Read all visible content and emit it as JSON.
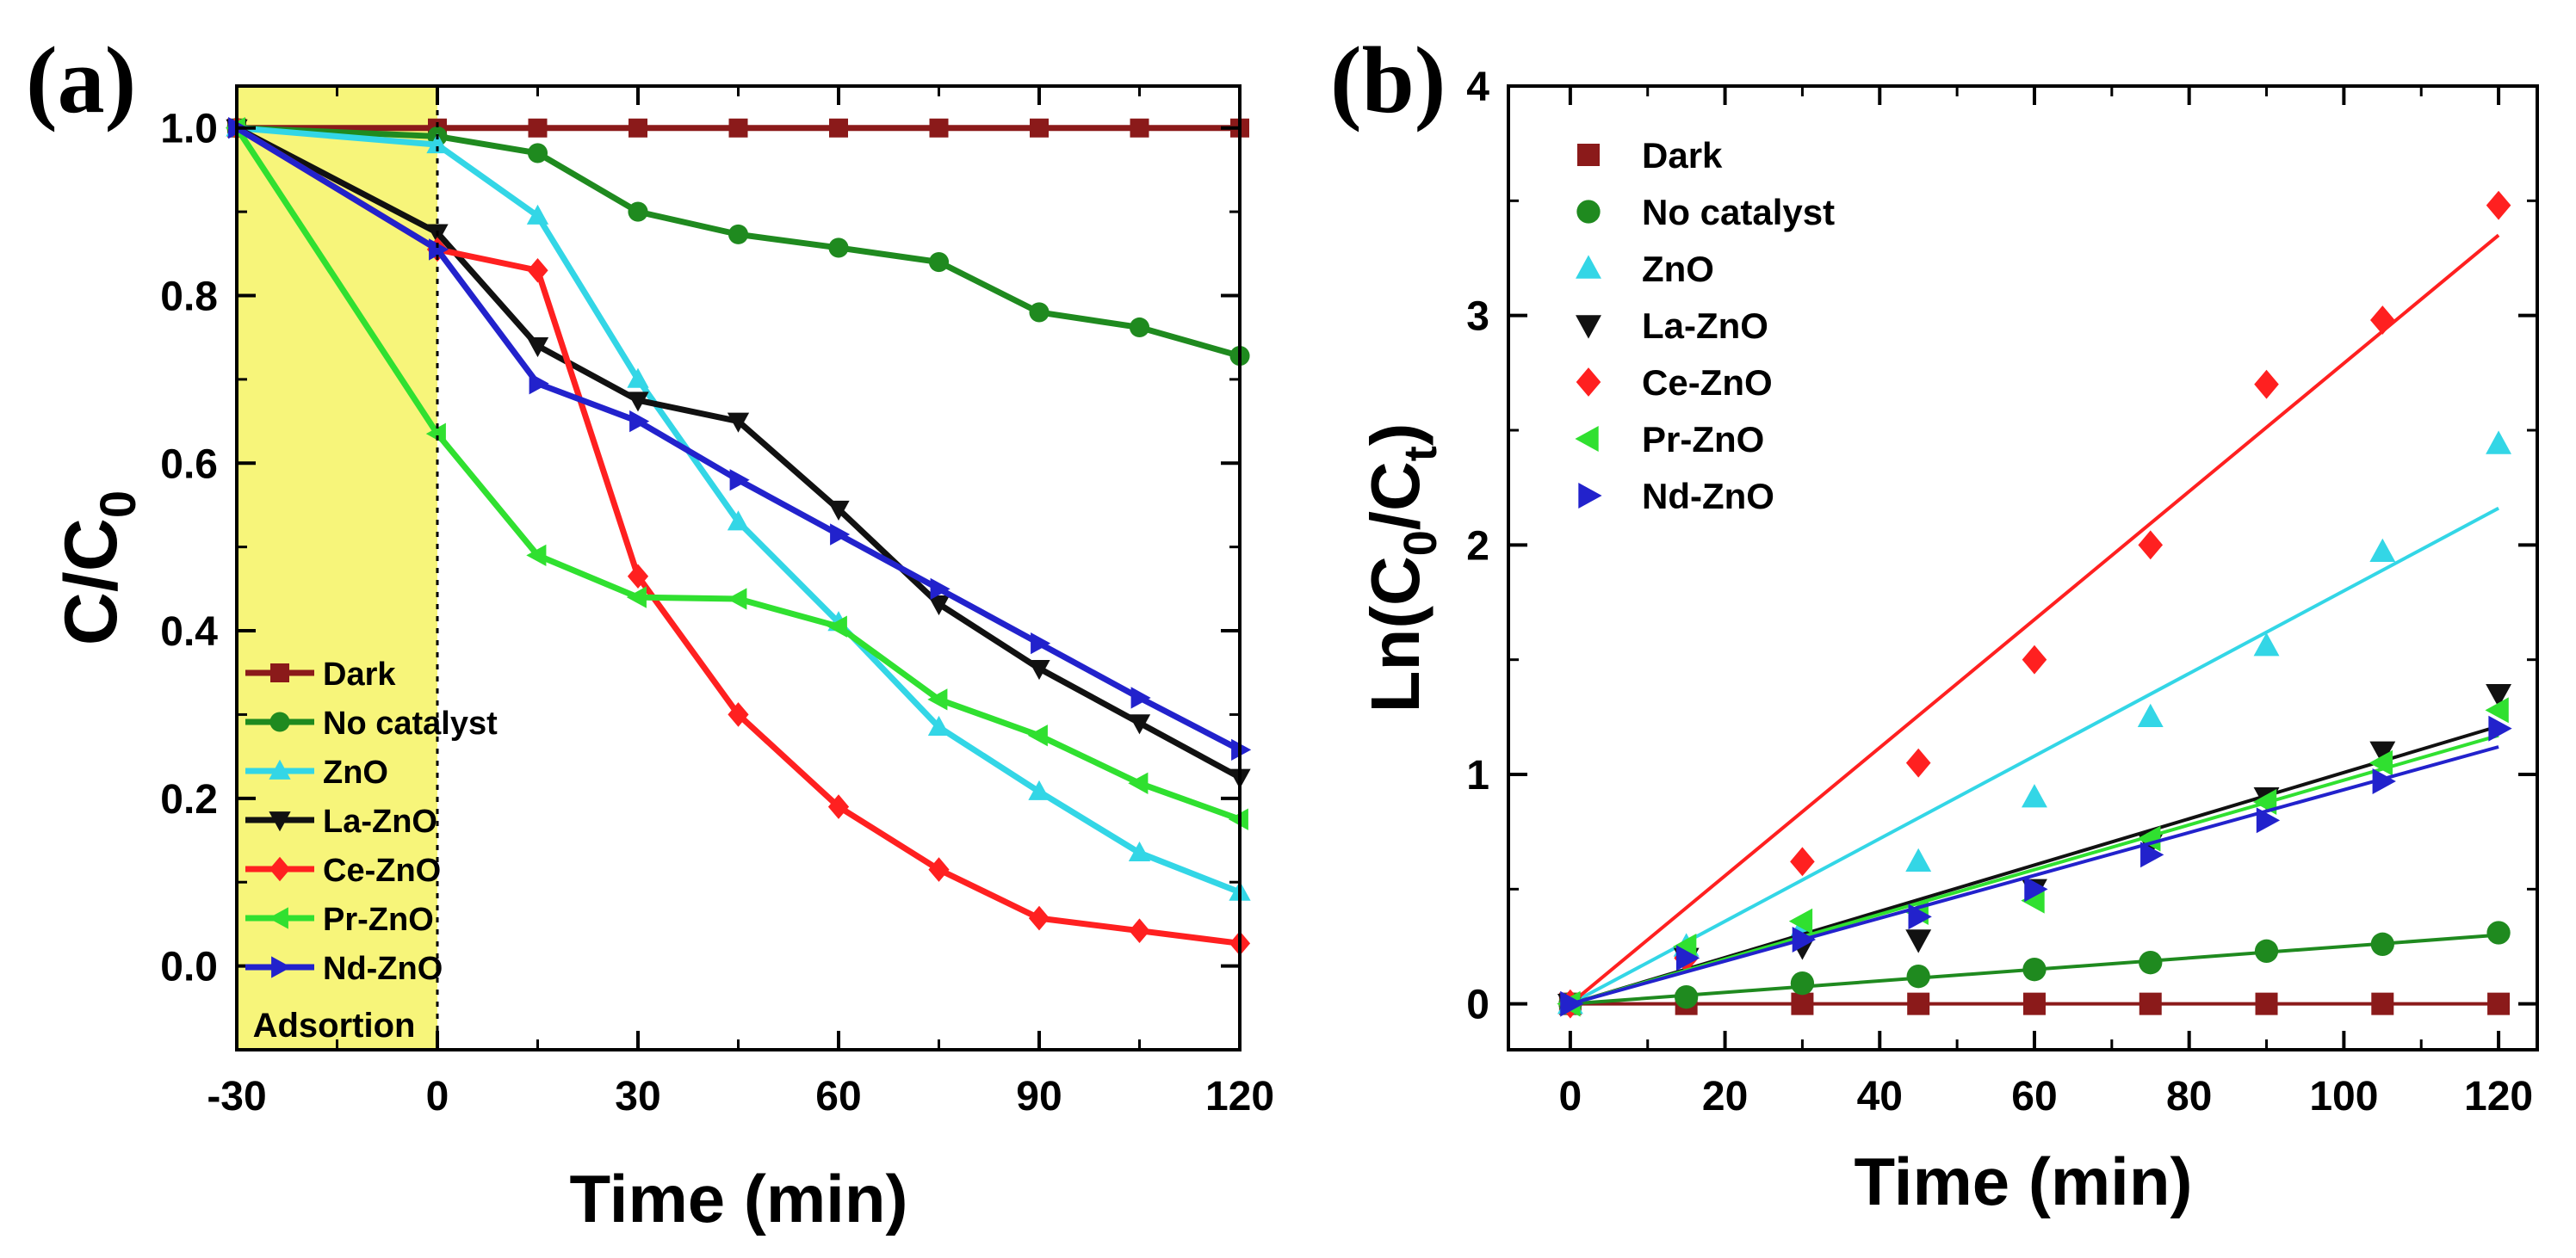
{
  "chart_data": [
    {
      "type": "line",
      "panel_label": "(a)",
      "xlabel": "Time (min)",
      "ylabel_main": "C/C",
      "ylabel_sub": "0",
      "xlim": [
        -30,
        120
      ],
      "ylim": [
        -0.1,
        1.05
      ],
      "xticks": [
        -30,
        0,
        30,
        60,
        90,
        120
      ],
      "xtick_labels": [
        "-30",
        "0",
        "30",
        "60",
        "90",
        "120"
      ],
      "yticks": [
        0.0,
        0.2,
        0.4,
        0.6,
        0.8,
        1.0
      ],
      "ytick_labels": [
        "0.0",
        "0.2",
        "0.4",
        "0.6",
        "0.8",
        "1.0"
      ],
      "shaded_region": {
        "from": -30,
        "to": 0,
        "color": "#f7f57a",
        "label": "Adsortion"
      },
      "legend_position": "lower-left",
      "x": [
        -30,
        0,
        15,
        30,
        45,
        60,
        75,
        90,
        105,
        120
      ],
      "series": [
        {
          "name": "Dark",
          "color": "#8b1a1a",
          "marker": "square",
          "values": [
            1.0,
            1.0,
            1.0,
            1.0,
            1.0,
            1.0,
            1.0,
            1.0,
            1.0,
            1.0
          ]
        },
        {
          "name": "No catalyst",
          "color": "#1f8a1f",
          "marker": "circle",
          "values": [
            1.0,
            0.99,
            0.97,
            0.9,
            0.873,
            0.857,
            0.84,
            0.78,
            0.762,
            0.728
          ]
        },
        {
          "name": "ZnO",
          "color": "#33d6e6",
          "marker": "triangle-up",
          "values": [
            1.0,
            0.98,
            0.895,
            0.7,
            0.53,
            0.41,
            0.285,
            0.208,
            0.135,
            0.088
          ]
        },
        {
          "name": "La-ZnO",
          "color": "#111111",
          "marker": "triangle-down",
          "values": [
            1.0,
            0.875,
            0.74,
            0.675,
            0.65,
            0.545,
            0.432,
            0.355,
            0.29,
            0.225
          ]
        },
        {
          "name": "Ce-ZnO",
          "color": "#ff2020",
          "marker": "diamond",
          "values": [
            1.0,
            0.855,
            0.83,
            0.465,
            0.3,
            0.19,
            0.115,
            0.057,
            0.042,
            0.027
          ]
        },
        {
          "name": "Pr-ZnO",
          "color": "#30e030",
          "marker": "triangle-left",
          "values": [
            1.0,
            0.635,
            0.49,
            0.44,
            0.438,
            0.405,
            0.318,
            0.275,
            0.218,
            0.175
          ]
        },
        {
          "name": "Nd-ZnO",
          "color": "#2222cc",
          "marker": "triangle-right",
          "values": [
            1.0,
            0.855,
            0.695,
            0.65,
            0.58,
            0.515,
            0.45,
            0.385,
            0.32,
            0.258
          ]
        }
      ]
    },
    {
      "type": "scatter",
      "panel_label": "(b)",
      "xlabel": "Time (min)",
      "ylabel_main": "Ln(C",
      "ylabel_sub1": "0",
      "ylabel_mid": "/C",
      "ylabel_sub2": "t",
      "ylabel_end": ")",
      "xlim": [
        -8,
        125
      ],
      "ylim": [
        -0.2,
        4.0
      ],
      "xticks": [
        0,
        20,
        40,
        60,
        80,
        100,
        120
      ],
      "xtick_labels": [
        "0",
        "20",
        "40",
        "60",
        "80",
        "100",
        "120"
      ],
      "yticks": [
        0,
        1,
        2,
        3,
        4
      ],
      "ytick_labels": [
        "0",
        "1",
        "2",
        "3",
        "4"
      ],
      "legend_position": "top-left",
      "x": [
        0,
        15,
        30,
        45,
        60,
        75,
        90,
        105,
        120
      ],
      "series": [
        {
          "name": "Dark",
          "color": "#8b1a1a",
          "marker": "square",
          "values": [
            0,
            0,
            0,
            0,
            0,
            0,
            0,
            0,
            0
          ],
          "fit": [
            0,
            0
          ]
        },
        {
          "name": "No catalyst",
          "color": "#1f8a1f",
          "marker": "circle",
          "values": [
            0,
            0.03,
            0.09,
            0.12,
            0.15,
            0.18,
            0.23,
            0.26,
            0.31
          ],
          "fit": [
            0,
            0.3
          ]
        },
        {
          "name": "ZnO",
          "color": "#33d6e6",
          "marker": "triangle-up",
          "values": [
            0,
            0.25,
            0.33,
            0.62,
            0.9,
            1.25,
            1.56,
            1.97,
            2.44
          ],
          "fit": [
            0,
            2.16
          ]
        },
        {
          "name": "La-ZnO",
          "color": "#111111",
          "marker": "triangle-down",
          "values": [
            0,
            0.2,
            0.25,
            0.28,
            0.5,
            0.7,
            0.9,
            1.1,
            1.35
          ],
          "fit": [
            0,
            1.21
          ]
        },
        {
          "name": "Ce-ZnO",
          "color": "#ff2020",
          "marker": "diamond",
          "values": [
            0,
            0.2,
            0.62,
            1.05,
            1.5,
            2.0,
            2.7,
            2.98,
            3.48
          ],
          "fit": [
            0,
            3.35
          ]
        },
        {
          "name": "Pr-ZnO",
          "color": "#30e030",
          "marker": "triangle-left",
          "values": [
            0,
            0.25,
            0.36,
            0.4,
            0.45,
            0.72,
            0.88,
            1.05,
            1.28
          ],
          "fit": [
            0,
            1.17
          ]
        },
        {
          "name": "Nd-ZnO",
          "color": "#2222cc",
          "marker": "triangle-right",
          "values": [
            0,
            0.2,
            0.28,
            0.38,
            0.5,
            0.65,
            0.8,
            0.97,
            1.2
          ],
          "fit": [
            0,
            1.12
          ]
        }
      ]
    }
  ]
}
